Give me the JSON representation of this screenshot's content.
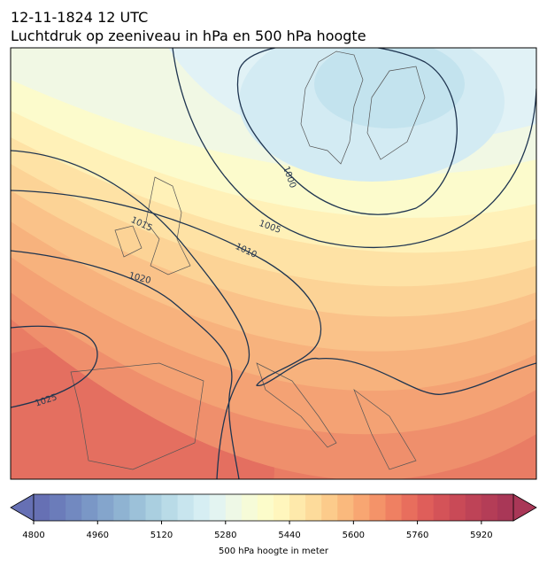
{
  "header": {
    "title": "12-11-1824 12 UTC",
    "subtitle": "Luchtdruk op zeeniveau in hPa en 500 hPa hoogte"
  },
  "contours": [
    {
      "label": 1000
    },
    {
      "label": 1005
    },
    {
      "label": 1010
    },
    {
      "label": 1015
    },
    {
      "label": 1020
    },
    {
      "label": 1025
    }
  ],
  "colorbar": {
    "label": "500 hPa hoogte in meter",
    "lim": [
      4800,
      6000
    ],
    "ticks": [
      4800,
      4960,
      5120,
      5280,
      5440,
      5600,
      5760,
      5920
    ],
    "colors": [
      "#6670b4",
      "#6b7cba",
      "#7289c0",
      "#7a97c6",
      "#84a5cc",
      "#8fb3d2",
      "#9cc1d9",
      "#aacfe0",
      "#b9dbe7",
      "#c8e5ee",
      "#d6eef3",
      "#e3f4f1",
      "#eef8e6",
      "#f6fbd8",
      "#fcfcca",
      "#fff6bd",
      "#fee9ab",
      "#fddb9b",
      "#fccb8b",
      "#fab97d",
      "#f8a672",
      "#f49369",
      "#ef8062",
      "#e86e5d",
      "#df5e5a",
      "#d45358",
      "#c94a57",
      "#be4357",
      "#b43d57",
      "#a93757"
    ]
  }
}
